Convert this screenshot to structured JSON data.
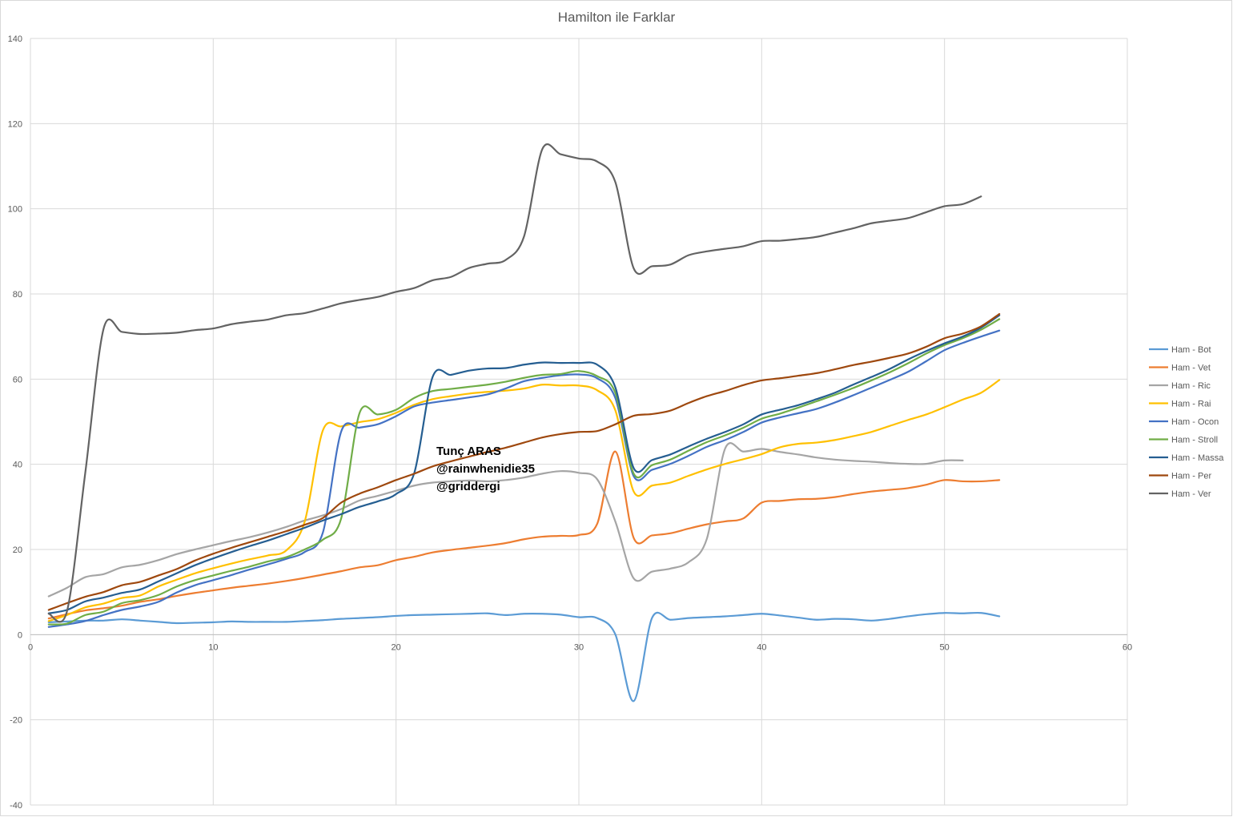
{
  "chart_data": {
    "type": "line",
    "title": "Hamilton ile Farklar",
    "xlabel": "",
    "ylabel": "",
    "xlim": [
      0,
      60
    ],
    "ylim": [
      -40,
      140
    ],
    "x_ticks": [
      0,
      10,
      20,
      30,
      40,
      50,
      60
    ],
    "y_ticks": [
      -40,
      -20,
      0,
      20,
      40,
      60,
      80,
      100,
      120,
      140
    ],
    "grid": true,
    "legend_position": "right",
    "annotations": [
      "Tunç ARAS",
      "@rainwhenidie35",
      "@griddergi"
    ],
    "series": [
      {
        "name": "Ham - Bot",
        "color": "#5b9bd5",
        "x": [
          1,
          2,
          3,
          4,
          5,
          6,
          7,
          8,
          9,
          10,
          11,
          12,
          13,
          14,
          15,
          16,
          17,
          18,
          19,
          20,
          21,
          22,
          23,
          24,
          25,
          26,
          27,
          28,
          29,
          30,
          31,
          32,
          33,
          34,
          35,
          36,
          37,
          38,
          39,
          40,
          41,
          42,
          43,
          44,
          45,
          46,
          47,
          48,
          49,
          50,
          51,
          52,
          53
        ],
        "y": [
          2.9,
          3.1,
          3.3,
          3.3,
          3.6,
          3.3,
          3.0,
          2.7,
          2.8,
          2.9,
          3.1,
          3.0,
          3.0,
          3.0,
          3.2,
          3.4,
          3.7,
          3.9,
          4.1,
          4.4,
          4.6,
          4.7,
          4.8,
          4.9,
          5.0,
          4.6,
          4.9,
          4.9,
          4.7,
          4.1,
          3.9,
          0.0,
          -15.6,
          3.9,
          3.5,
          3.9,
          4.1,
          4.3,
          4.6,
          4.9,
          4.5,
          4.0,
          3.5,
          3.7,
          3.6,
          3.3,
          3.7,
          4.3,
          4.8,
          5.1,
          5.0,
          5.1,
          4.3
        ]
      },
      {
        "name": "Ham - Vet",
        "color": "#ed7d31",
        "x": [
          1,
          2,
          3,
          4,
          5,
          6,
          7,
          8,
          9,
          10,
          11,
          12,
          13,
          14,
          15,
          16,
          17,
          18,
          19,
          20,
          21,
          22,
          23,
          24,
          25,
          26,
          27,
          28,
          29,
          30,
          31,
          32,
          33,
          34,
          35,
          36,
          37,
          38,
          39,
          40,
          41,
          42,
          43,
          44,
          45,
          46,
          47,
          48,
          49,
          50,
          51,
          52,
          53
        ],
        "y": [
          3.8,
          4.8,
          5.7,
          6.2,
          6.8,
          7.7,
          8.3,
          9.1,
          9.8,
          10.4,
          11.0,
          11.5,
          12.0,
          12.6,
          13.3,
          14.1,
          14.9,
          15.8,
          16.3,
          17.5,
          18.3,
          19.3,
          19.9,
          20.4,
          20.9,
          21.5,
          22.4,
          23.0,
          23.2,
          23.4,
          26.0,
          43.0,
          22.7,
          23.3,
          23.8,
          24.9,
          25.9,
          26.6,
          27.3,
          31.0,
          31.4,
          31.8,
          31.9,
          32.3,
          33.0,
          33.6,
          34.0,
          34.4,
          35.2,
          36.3,
          36.0,
          36.0,
          36.3
        ]
      },
      {
        "name": "Ham - Ric",
        "color": "#a5a5a5",
        "x": [
          1,
          2,
          3,
          4,
          5,
          6,
          7,
          8,
          9,
          10,
          11,
          12,
          13,
          14,
          15,
          16,
          17,
          18,
          19,
          20,
          21,
          22,
          23,
          24,
          25,
          26,
          27,
          28,
          29,
          30,
          31,
          32,
          33,
          34,
          35,
          36,
          37,
          38,
          39,
          40,
          41,
          42,
          43,
          44,
          45,
          46,
          47,
          48,
          49,
          50,
          51
        ],
        "y": [
          9.0,
          11.0,
          13.5,
          14.2,
          15.8,
          16.4,
          17.5,
          18.9,
          20.0,
          21.0,
          22.0,
          22.9,
          24.0,
          25.3,
          26.8,
          28.0,
          29.5,
          31.5,
          32.6,
          33.8,
          35.0,
          35.7,
          36.0,
          36.2,
          36.0,
          36.3,
          36.9,
          37.8,
          38.4,
          38.0,
          36.5,
          26.5,
          13.2,
          14.8,
          15.5,
          17.0,
          22.5,
          43.7,
          43.0,
          43.6,
          42.9,
          42.3,
          41.6,
          41.1,
          40.8,
          40.6,
          40.3,
          40.1,
          40.1,
          40.9,
          40.9
        ]
      },
      {
        "name": "Ham - Rai",
        "color": "#ffc000",
        "x": [
          1,
          2,
          3,
          4,
          5,
          6,
          7,
          8,
          9,
          10,
          11,
          12,
          13,
          14,
          15,
          16,
          17,
          18,
          19,
          20,
          21,
          22,
          23,
          24,
          25,
          26,
          27,
          28,
          29,
          30,
          31,
          32,
          33,
          34,
          35,
          36,
          37,
          38,
          39,
          40,
          41,
          42,
          43,
          44,
          45,
          46,
          47,
          48,
          49,
          50,
          51,
          52,
          53
        ],
        "y": [
          3.2,
          4.6,
          6.4,
          7.3,
          8.6,
          9.2,
          11.3,
          12.9,
          14.4,
          15.6,
          16.7,
          17.7,
          18.6,
          19.8,
          26.5,
          48.0,
          48.9,
          49.9,
          50.6,
          52.1,
          54.0,
          55.3,
          56.0,
          56.6,
          57.0,
          57.3,
          57.8,
          58.7,
          58.5,
          58.5,
          57.4,
          52.6,
          33.6,
          35.0,
          35.7,
          37.3,
          38.8,
          40.1,
          41.2,
          42.4,
          44.0,
          44.8,
          45.1,
          45.7,
          46.6,
          47.6,
          49.0,
          50.4,
          51.7,
          53.4,
          55.2,
          56.8,
          59.8
        ]
      },
      {
        "name": "Ham - Ocon",
        "color": "#4472c4",
        "x": [
          1,
          2,
          3,
          4,
          5,
          6,
          7,
          8,
          9,
          10,
          11,
          12,
          13,
          14,
          15,
          16,
          17,
          18,
          19,
          20,
          21,
          22,
          23,
          24,
          25,
          26,
          27,
          28,
          29,
          30,
          31,
          32,
          33,
          34,
          35,
          36,
          37,
          38,
          39,
          40,
          41,
          42,
          43,
          44,
          45,
          46,
          47,
          48,
          49,
          50,
          51,
          52,
          53
        ],
        "y": [
          1.8,
          2.4,
          3.2,
          4.6,
          5.8,
          6.6,
          7.7,
          9.9,
          11.6,
          12.8,
          14.0,
          15.3,
          16.5,
          17.8,
          19.4,
          24.0,
          47.7,
          48.6,
          49.4,
          51.3,
          53.6,
          54.5,
          55.1,
          55.7,
          56.4,
          57.8,
          59.5,
          60.3,
          60.9,
          61.1,
          60.2,
          55.5,
          37.2,
          38.7,
          40.1,
          42.0,
          44.1,
          45.7,
          47.6,
          49.8,
          51.0,
          52.0,
          53.0,
          54.5,
          56.2,
          58.0,
          59.8,
          61.7,
          64.2,
          66.8,
          68.5,
          70.0,
          71.4
        ]
      },
      {
        "name": "Ham - Stroll",
        "color": "#70ad47",
        "x": [
          1,
          2,
          3,
          4,
          5,
          6,
          7,
          8,
          9,
          10,
          11,
          12,
          13,
          14,
          15,
          16,
          17,
          18,
          19,
          20,
          21,
          22,
          23,
          24,
          25,
          26,
          27,
          28,
          29,
          30,
          31,
          32,
          33,
          34,
          35,
          36,
          37,
          38,
          39,
          40,
          41,
          42,
          43,
          44,
          45,
          46,
          47,
          48,
          49,
          50,
          51,
          52,
          53
        ],
        "y": [
          2.4,
          2.6,
          4.6,
          5.4,
          7.4,
          8.1,
          9.3,
          11.3,
          12.8,
          13.9,
          15.0,
          16.0,
          17.2,
          18.2,
          20.0,
          22.3,
          27.3,
          52.0,
          51.7,
          52.8,
          55.6,
          57.2,
          57.7,
          58.2,
          58.7,
          59.4,
          60.3,
          61.0,
          61.2,
          61.9,
          60.7,
          56.7,
          37.8,
          39.8,
          41.1,
          43.2,
          45.2,
          46.8,
          48.6,
          50.7,
          51.9,
          53.3,
          54.8,
          56.3,
          57.9,
          59.7,
          61.6,
          63.7,
          66.0,
          68.0,
          69.6,
          71.6,
          74.1
        ]
      },
      {
        "name": "Ham - Massa",
        "color": "#255e91",
        "x": [
          1,
          2,
          3,
          4,
          5,
          6,
          7,
          8,
          9,
          10,
          11,
          12,
          13,
          14,
          15,
          16,
          17,
          18,
          19,
          20,
          21,
          22,
          23,
          24,
          25,
          26,
          27,
          28,
          29,
          30,
          31,
          32,
          33,
          34,
          35,
          36,
          37,
          38,
          39,
          40,
          41,
          42,
          43,
          44,
          45,
          46,
          47,
          48,
          49,
          50,
          51,
          52,
          53
        ],
        "y": [
          5.0,
          5.8,
          7.8,
          8.7,
          9.8,
          10.6,
          12.5,
          14.4,
          16.3,
          17.9,
          19.4,
          20.8,
          22.1,
          23.6,
          25.1,
          26.8,
          28.3,
          30.0,
          31.3,
          33.0,
          38.0,
          60.5,
          61.0,
          62.0,
          62.5,
          62.6,
          63.4,
          63.9,
          63.8,
          63.8,
          63.4,
          58.0,
          39.1,
          41.0,
          42.3,
          44.2,
          46.0,
          47.6,
          49.4,
          51.7,
          52.8,
          53.9,
          55.3,
          56.8,
          58.7,
          60.5,
          62.4,
          64.6,
          66.6,
          68.4,
          70.0,
          72.1,
          75.0
        ]
      },
      {
        "name": "Ham - Per",
        "color": "#9e480e",
        "x": [
          1,
          2,
          3,
          4,
          5,
          6,
          7,
          8,
          9,
          10,
          11,
          12,
          13,
          14,
          15,
          16,
          17,
          18,
          19,
          20,
          21,
          22,
          23,
          24,
          25,
          26,
          27,
          28,
          29,
          30,
          31,
          32,
          33,
          34,
          35,
          36,
          37,
          38,
          39,
          40,
          41,
          42,
          43,
          44,
          45,
          46,
          47,
          48,
          49,
          50,
          51,
          52,
          53
        ],
        "y": [
          5.8,
          7.4,
          8.9,
          10.0,
          11.6,
          12.4,
          13.9,
          15.4,
          17.4,
          19.0,
          20.4,
          21.7,
          23.0,
          24.3,
          25.8,
          27.4,
          31.0,
          33.1,
          34.6,
          36.3,
          37.8,
          39.5,
          40.7,
          41.8,
          42.9,
          43.9,
          45.1,
          46.3,
          47.1,
          47.6,
          47.8,
          49.4,
          51.4,
          51.8,
          52.6,
          54.4,
          56.0,
          57.2,
          58.6,
          59.7,
          60.2,
          60.8,
          61.4,
          62.3,
          63.3,
          64.1,
          65.0,
          66.0,
          67.6,
          69.6,
          70.7,
          72.4,
          75.3
        ]
      },
      {
        "name": "Ham - Ver",
        "color": "#636363",
        "x": [
          1,
          2,
          3,
          4,
          5,
          6,
          7,
          8,
          9,
          10,
          11,
          12,
          13,
          14,
          15,
          16,
          17,
          18,
          19,
          20,
          21,
          22,
          23,
          24,
          25,
          26,
          27,
          28,
          29,
          30,
          31,
          32,
          33,
          34,
          35,
          36,
          37,
          38,
          39,
          40,
          41,
          42,
          43,
          44,
          45,
          46,
          47,
          48,
          49,
          50,
          51,
          52
        ],
        "y": [
          4.9,
          5.5,
          38.0,
          71.8,
          71.1,
          70.6,
          70.7,
          70.9,
          71.5,
          71.9,
          72.9,
          73.5,
          74.0,
          75.0,
          75.5,
          76.6,
          77.8,
          78.6,
          79.3,
          80.5,
          81.4,
          83.2,
          84.0,
          86.1,
          87.1,
          88.0,
          93.5,
          114.0,
          112.8,
          111.8,
          111.1,
          106.2,
          86.0,
          86.5,
          86.9,
          89.1,
          90.0,
          90.6,
          91.2,
          92.4,
          92.5,
          92.9,
          93.4,
          94.4,
          95.4,
          96.6,
          97.2,
          97.8,
          99.2,
          100.6,
          101.1,
          102.9
        ]
      }
    ]
  }
}
